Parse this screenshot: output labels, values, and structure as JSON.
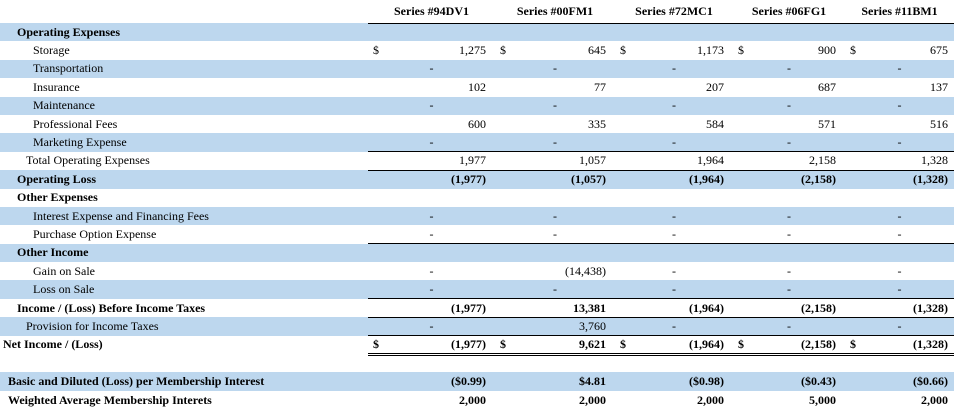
{
  "table": {
    "columns": [
      "Series #94DV1",
      "Series #00FM1",
      "Series #72MC1",
      "Series #06FG1",
      "Series #11BM1"
    ],
    "colors": {
      "stripe_blue": "#BDD7EE",
      "text": "#000000",
      "background": "#FFFFFF"
    },
    "rows": [
      {
        "label": "Operating Expenses",
        "indent": 2,
        "bold": true,
        "bg": "blue",
        "values": [
          "",
          "",
          "",
          "",
          ""
        ]
      },
      {
        "label": "Storage",
        "indent": 4,
        "bold": false,
        "bg": "white",
        "dollar": true,
        "values": [
          "1,275",
          "645",
          "1,173",
          "900",
          "675"
        ]
      },
      {
        "label": "Transportation",
        "indent": 4,
        "bold": false,
        "bg": "blue",
        "values": [
          "-",
          "-",
          "-",
          "-",
          "-"
        ]
      },
      {
        "label": "Insurance",
        "indent": 4,
        "bold": false,
        "bg": "white",
        "values": [
          "102",
          "77",
          "207",
          "687",
          "137"
        ]
      },
      {
        "label": "Maintenance",
        "indent": 4,
        "bold": false,
        "bg": "blue",
        "values": [
          "-",
          "-",
          "-",
          "-",
          "-"
        ]
      },
      {
        "label": "Professional Fees",
        "indent": 4,
        "bold": false,
        "bg": "white",
        "values": [
          "600",
          "335",
          "584",
          "571",
          "516"
        ]
      },
      {
        "label": "Marketing Expense",
        "indent": 4,
        "bold": false,
        "bg": "blue",
        "border": "bottom",
        "values": [
          "-",
          "-",
          "-",
          "-",
          "-"
        ]
      },
      {
        "label": "Total Operating Expenses",
        "indent": 3,
        "bold": false,
        "bg": "white",
        "border": "bottom",
        "values": [
          "1,977",
          "1,057",
          "1,964",
          "2,158",
          "1,328"
        ]
      },
      {
        "label": "Operating Loss",
        "indent": 2,
        "bold": true,
        "bg": "blue",
        "values": [
          "(1,977)",
          "(1,057)",
          "(1,964)",
          "(2,158)",
          "(1,328)"
        ]
      },
      {
        "label": "Other Expenses",
        "indent": 2,
        "bold": true,
        "bg": "white",
        "values": [
          "",
          "",
          "",
          "",
          ""
        ]
      },
      {
        "label": "Interest Expense and Financing Fees",
        "indent": 4,
        "bold": false,
        "bg": "blue",
        "values": [
          "-",
          "-",
          "-",
          "-",
          "-"
        ]
      },
      {
        "label": "Purchase Option Expense",
        "indent": 4,
        "bold": false,
        "bg": "white",
        "border": "bottom",
        "values": [
          "-",
          "-",
          "-",
          "-",
          "-"
        ]
      },
      {
        "label": "Other Income",
        "indent": 2,
        "bold": true,
        "bg": "blue",
        "values": [
          "",
          "",
          "",
          "",
          ""
        ]
      },
      {
        "label": "Gain on Sale",
        "indent": 4,
        "bold": false,
        "bg": "white",
        "values": [
          "-",
          "(14,438)",
          "-",
          "-",
          "-"
        ]
      },
      {
        "label": "Loss on Sale",
        "indent": 4,
        "bold": false,
        "bg": "blue",
        "border": "bottom",
        "values": [
          "-",
          "-",
          "-",
          "-",
          "-"
        ]
      },
      {
        "label": "Income / (Loss) Before Income Taxes",
        "indent": 2,
        "bold": true,
        "bg": "white",
        "border": "bottom",
        "values": [
          "(1,977)",
          "13,381",
          "(1,964)",
          "(2,158)",
          "(1,328)"
        ]
      },
      {
        "label": "Provision for Income Taxes",
        "indent": 3,
        "bold": false,
        "bg": "blue",
        "border": "bottom",
        "values": [
          "-",
          "3,760",
          "-",
          "-",
          "-"
        ]
      },
      {
        "label": "Net Income / (Loss)",
        "indent": 0,
        "bold": true,
        "bg": "white",
        "dollar": true,
        "border": "double",
        "values": [
          "(1,977)",
          "9,621",
          "(1,964)",
          "(2,158)",
          "(1,328)"
        ]
      },
      {
        "label": "",
        "indent": 0,
        "bold": false,
        "bg": "white",
        "values": [
          "",
          "",
          "",
          "",
          ""
        ]
      },
      {
        "label": "Basic and Diluted (Loss) per Membership Interest",
        "indent": 1,
        "bold": true,
        "bg": "blue",
        "values": [
          "($0.99)",
          "$4.81",
          "($0.98)",
          "($0.43)",
          "($0.66)"
        ]
      },
      {
        "label": "Weighted Average Membership Interets",
        "indent": 1,
        "bold": true,
        "bg": "white",
        "values": [
          "2,000",
          "2,000",
          "2,000",
          "5,000",
          "2,000"
        ]
      }
    ]
  }
}
